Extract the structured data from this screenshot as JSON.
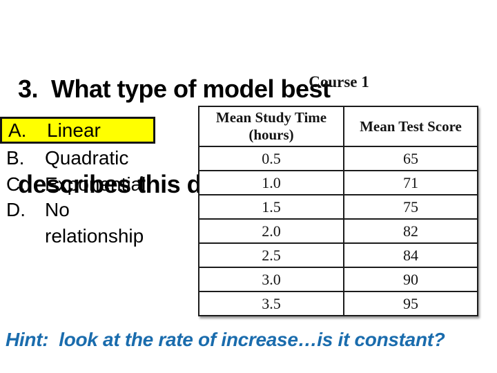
{
  "slide": {
    "title_line1": "3.  What type of model best",
    "title_line2": "describes this data’s relationship?",
    "hint": "Hint:  look at the rate of increase…is it constant?",
    "hint_color": "#1a6cad"
  },
  "options": {
    "highlight_color": "#ffff00",
    "items": [
      {
        "letter": "A.",
        "label": "Linear",
        "highlighted": true
      },
      {
        "letter": "B.",
        "label": "Quadratic",
        "highlighted": false
      },
      {
        "letter": "C.",
        "label": "Exponential",
        "highlighted": false
      },
      {
        "letter": "D.",
        "label": "No relationship",
        "highlighted": false
      }
    ]
  },
  "table": {
    "title": "Course 1",
    "columns": [
      "Mean Study Time (hours)",
      "Mean Test Score"
    ],
    "rows": [
      [
        "0.5",
        "65"
      ],
      [
        "1.0",
        "71"
      ],
      [
        "1.5",
        "75"
      ],
      [
        "2.0",
        "82"
      ],
      [
        "2.5",
        "84"
      ],
      [
        "3.0",
        "90"
      ],
      [
        "3.5",
        "95"
      ]
    ]
  }
}
